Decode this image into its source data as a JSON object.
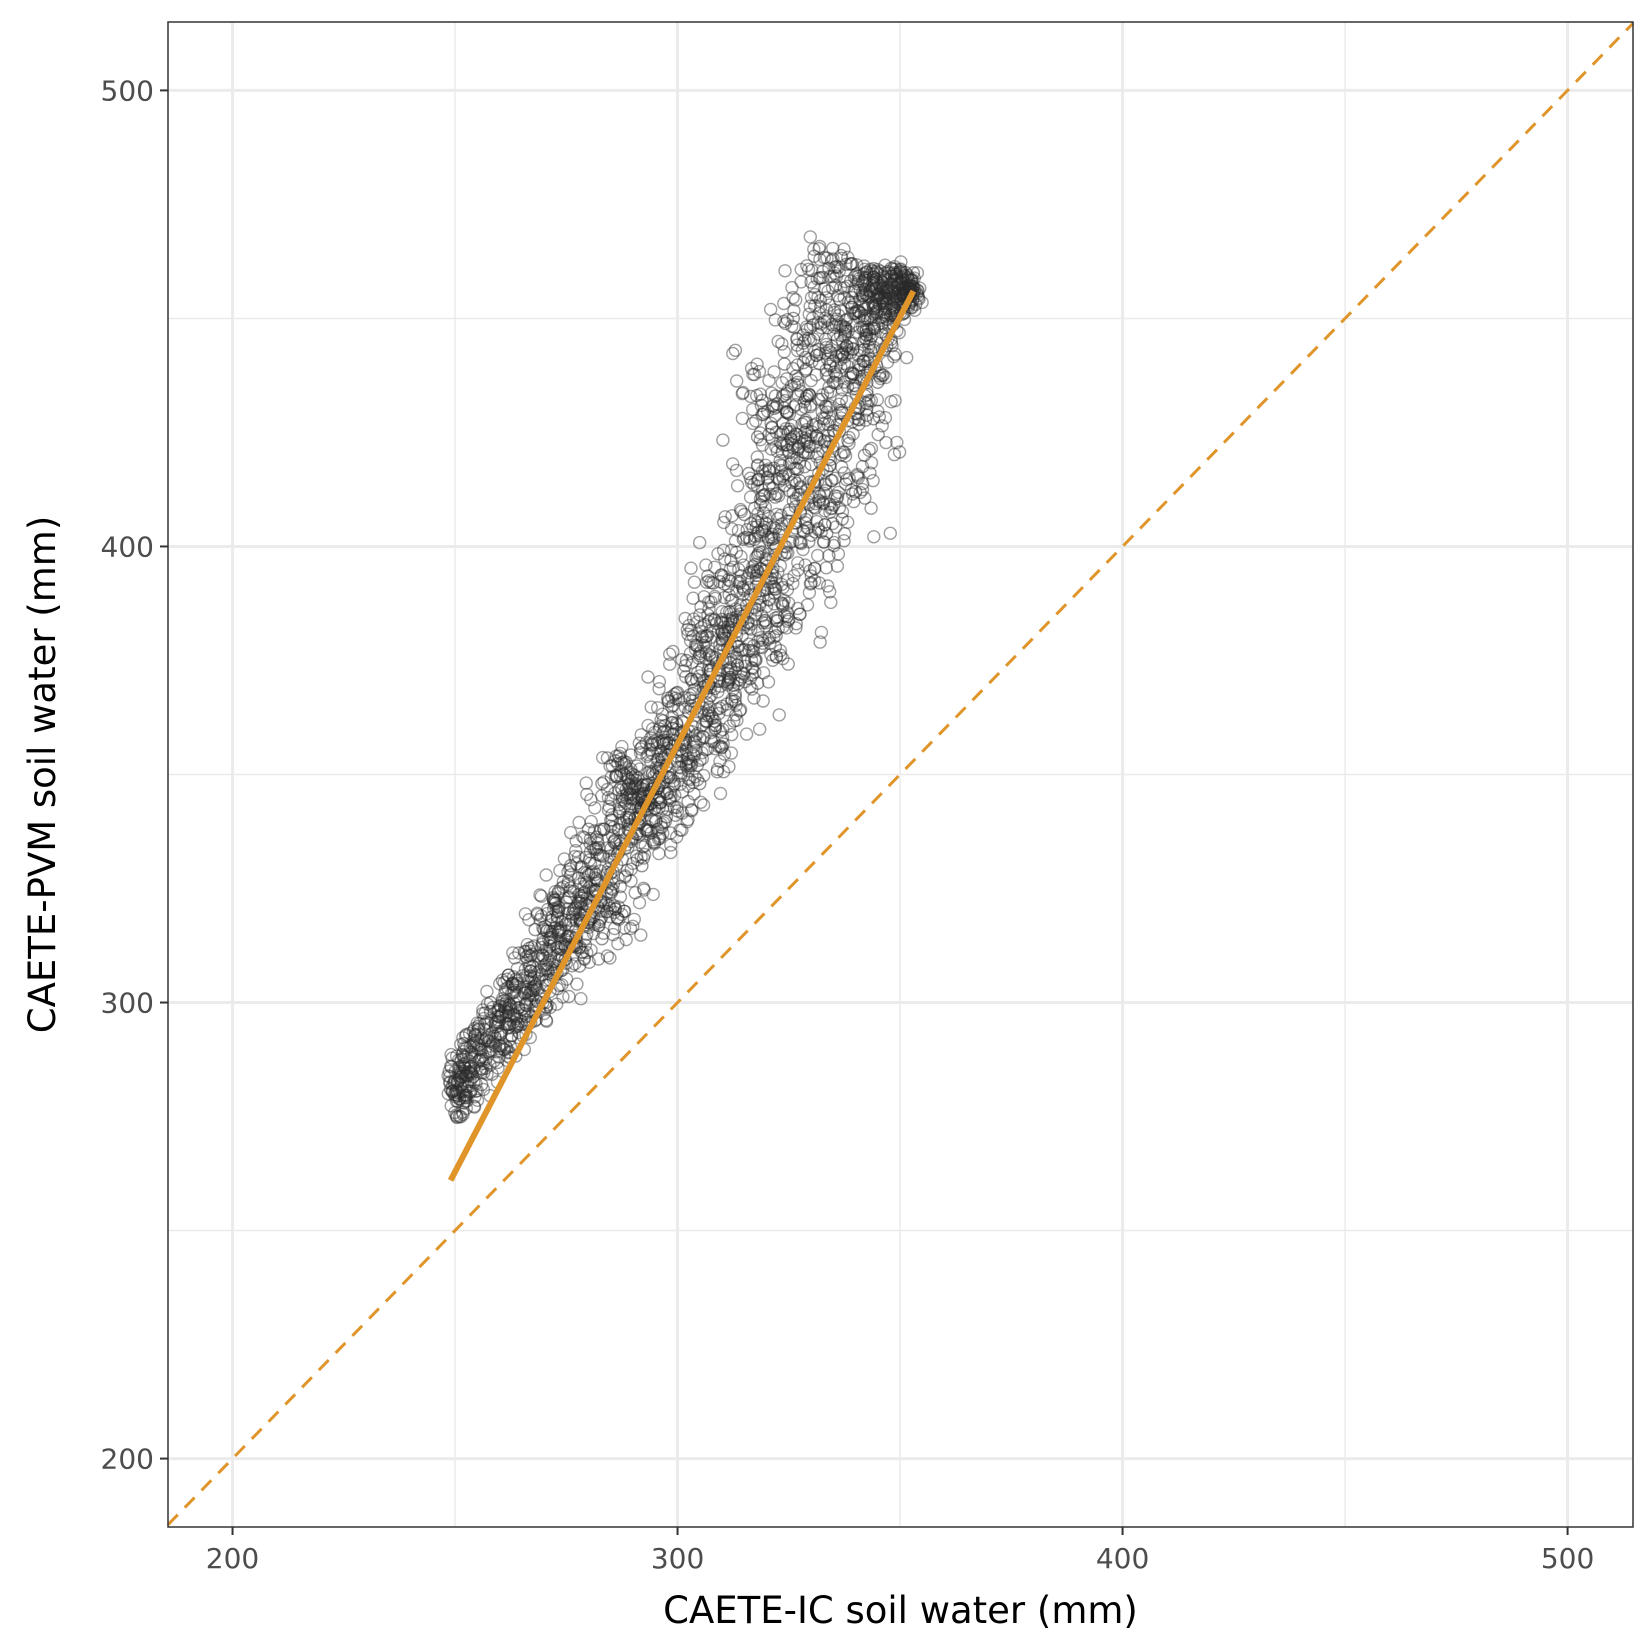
{
  "chart_data": {
    "type": "scatter",
    "title": "",
    "xlabel": "CAETE-IC soil water (mm)",
    "ylabel": "CAETE-PVM soil water (mm)",
    "xlim": [
      185.5,
      514.7
    ],
    "ylim": [
      185,
      515
    ],
    "x_major_ticks": [
      200,
      300,
      400,
      500
    ],
    "y_major_ticks": [
      200,
      300,
      400,
      500
    ],
    "x_minor_ticks": [
      250,
      350,
      450
    ],
    "y_minor_ticks": [
      250,
      350,
      450
    ],
    "grid": true,
    "legend": "none",
    "point_color": "#2a2a2a",
    "line_color": "#e0952a",
    "point_cloud": {
      "description_points": [
        [
          250,
          283
        ],
        [
          252,
          278
        ],
        [
          255,
          291
        ],
        [
          258,
          298
        ],
        [
          262,
          306
        ],
        [
          266,
          310
        ],
        [
          270,
          316
        ],
        [
          275,
          322
        ],
        [
          280,
          328
        ],
        [
          285,
          340
        ],
        [
          288,
          350
        ],
        [
          292,
          356
        ],
        [
          296,
          360
        ],
        [
          300,
          368
        ],
        [
          305,
          376
        ],
        [
          310,
          384
        ],
        [
          314,
          392
        ],
        [
          318,
          398
        ],
        [
          322,
          404
        ],
        [
          326,
          410
        ],
        [
          330,
          418
        ],
        [
          333,
          428
        ],
        [
          335,
          436
        ],
        [
          338,
          444
        ],
        [
          342,
          452
        ],
        [
          346,
          458
        ],
        [
          350,
          460
        ],
        [
          353,
          457
        ]
      ],
      "upper_edge": [
        [
          249,
          281
        ],
        [
          252,
          291
        ],
        [
          258,
          300
        ],
        [
          262,
          306
        ],
        [
          268,
          316
        ],
        [
          272,
          323
        ],
        [
          276,
          330
        ],
        [
          280,
          338
        ],
        [
          283,
          348
        ],
        [
          286,
          353
        ],
        [
          290,
          350
        ],
        [
          294,
          358
        ],
        [
          298,
          366
        ],
        [
          302,
          375
        ],
        [
          305,
          385
        ],
        [
          308,
          392
        ],
        [
          312,
          397
        ],
        [
          315,
          407
        ],
        [
          316,
          416
        ],
        [
          318,
          424
        ],
        [
          319,
          432
        ],
        [
          322,
          433
        ],
        [
          324,
          440
        ],
        [
          326,
          450
        ],
        [
          330,
          458
        ],
        [
          334,
          461
        ],
        [
          339,
          462
        ],
        [
          344,
          459
        ],
        [
          348,
          461
        ],
        [
          353,
          460
        ]
      ],
      "lower_edge": [
        [
          251,
          275
        ],
        [
          256,
          282
        ],
        [
          262,
          289
        ],
        [
          268,
          296
        ],
        [
          273,
          303
        ],
        [
          278,
          308
        ],
        [
          283,
          314
        ],
        [
          288,
          320
        ],
        [
          292,
          330
        ],
        [
          296,
          336
        ],
        [
          300,
          342
        ],
        [
          305,
          348
        ],
        [
          310,
          356
        ],
        [
          314,
          364
        ],
        [
          318,
          370
        ],
        [
          322,
          378
        ],
        [
          325,
          384
        ],
        [
          330,
          392
        ],
        [
          334,
          398
        ],
        [
          337,
          406
        ],
        [
          340,
          412
        ],
        [
          342,
          420
        ],
        [
          344,
          428
        ],
        [
          345,
          436
        ],
        [
          347,
          444
        ],
        [
          349,
          450
        ],
        [
          352,
          453
        ],
        [
          354,
          455
        ]
      ]
    },
    "series": [
      {
        "type": "scatter",
        "marker": "open-circle"
      },
      {
        "type": "line",
        "style": "solid",
        "x": [
          249,
          353
        ],
        "y": [
          261,
          456
        ]
      },
      {
        "type": "line",
        "style": "dashed",
        "x": [
          185.5,
          514.7
        ],
        "y": [
          185.5,
          514.7
        ]
      }
    ]
  }
}
